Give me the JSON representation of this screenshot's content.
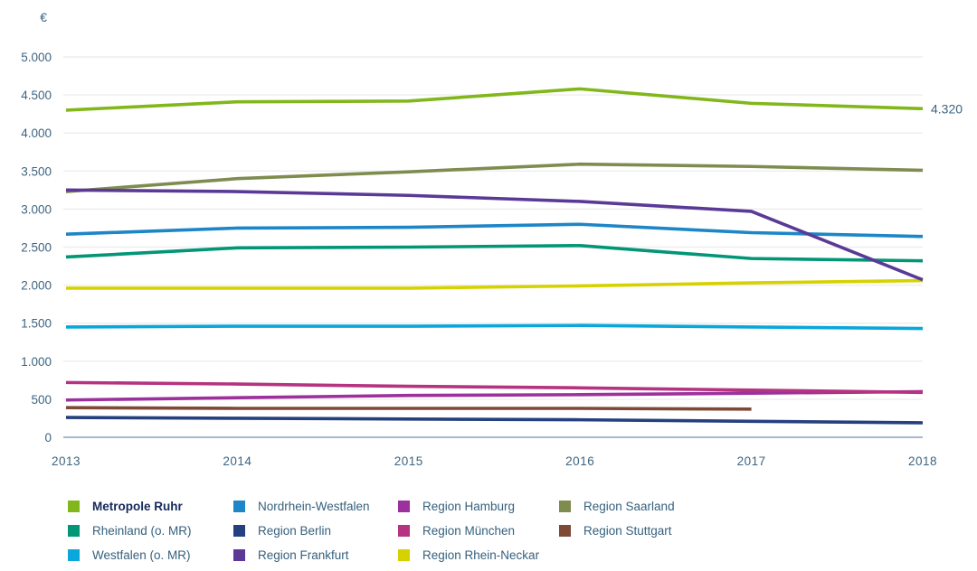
{
  "chart_data": {
    "type": "line",
    "title": "",
    "ylabel": "€",
    "xlabel": "",
    "x": [
      2013,
      2014,
      2015,
      2016,
      2017,
      2018
    ],
    "ylim": [
      0,
      5000
    ],
    "grid": true,
    "legend_position": "bottom",
    "y_ticks": [
      {
        "value": 0,
        "label": "0"
      },
      {
        "value": 500,
        "label": "500"
      },
      {
        "value": 1000,
        "label": "1.000"
      },
      {
        "value": 1500,
        "label": "1.500"
      },
      {
        "value": 2000,
        "label": "2.000"
      },
      {
        "value": 2500,
        "label": "2.500"
      },
      {
        "value": 3000,
        "label": "3.000"
      },
      {
        "value": 3500,
        "label": "3.500"
      },
      {
        "value": 4000,
        "label": "4.000"
      },
      {
        "value": 4500,
        "label": "4.500"
      },
      {
        "value": 5000,
        "label": "5.000"
      }
    ],
    "x_tick_labels": [
      "2013",
      "2014",
      "2015",
      "2016",
      "2017",
      "2018"
    ],
    "series": [
      {
        "name": "Region Saarland",
        "color": "#7e8c4f",
        "values": [
          3230,
          3400,
          3490,
          3590,
          3560,
          3510
        ]
      },
      {
        "name": "Nordrhein-Westfalen",
        "color": "#1d86c7",
        "values": [
          2670,
          2750,
          2760,
          2800,
          2690,
          2640
        ]
      },
      {
        "name": "Rheinland (o. MR)",
        "color": "#029677",
        "values": [
          2370,
          2490,
          2500,
          2520,
          2350,
          2320
        ]
      },
      {
        "name": "Westfalen (o. MR)",
        "color": "#09a7db",
        "values": [
          1450,
          1460,
          1460,
          1470,
          1450,
          1430
        ]
      },
      {
        "name": "Region Rhein-Neckar",
        "color": "#d6d201",
        "values": [
          1960,
          1960,
          1960,
          1990,
          2030,
          2060
        ]
      },
      {
        "name": "Region Berlin",
        "color": "#25407f",
        "values": [
          260,
          250,
          240,
          230,
          210,
          190
        ]
      },
      {
        "name": "Region Stuttgart",
        "color": "#7e4937",
        "values": [
          390,
          380,
          380,
          380,
          370,
          null
        ]
      },
      {
        "name": "Region Hamburg",
        "color": "#9c309c",
        "values": [
          490,
          520,
          550,
          560,
          580,
          600
        ]
      },
      {
        "name": "Region München",
        "color": "#b53380",
        "values": [
          720,
          700,
          670,
          650,
          620,
          590
        ]
      },
      {
        "name": "Region Frankfurt",
        "color": "#5a3a96",
        "values": [
          3250,
          3230,
          3180,
          3100,
          2970,
          2070
        ]
      },
      {
        "name": "Metropole Ruhr",
        "color": "#82b71c",
        "values": [
          4300,
          4410,
          4420,
          4580,
          4390,
          4320
        ]
      }
    ],
    "end_label": {
      "series": "Metropole Ruhr",
      "text": "4.320"
    }
  },
  "legend": {
    "columns": [
      {
        "x": 75,
        "items": [
          {
            "label": "Metropole Ruhr",
            "color": "#82b71c",
            "bold": true
          },
          {
            "label": "Rheinland (o. MR)",
            "color": "#029677",
            "bold": false
          },
          {
            "label": "Westfalen (o. MR)",
            "color": "#09a7db",
            "bold": false
          }
        ]
      },
      {
        "x": 258,
        "items": [
          {
            "label": "Nordrhein-Westfalen",
            "color": "#1d86c7",
            "bold": false
          },
          {
            "label": "Region Berlin",
            "color": "#25407f",
            "bold": false
          },
          {
            "label": "Region Frankfurt",
            "color": "#5a3a96",
            "bold": false
          }
        ]
      },
      {
        "x": 440,
        "items": [
          {
            "label": "Region Hamburg",
            "color": "#9c309c",
            "bold": false
          },
          {
            "label": "Region München",
            "color": "#b53380",
            "bold": false
          },
          {
            "label": "Region Rhein-Neckar",
            "color": "#d6d201",
            "bold": false
          }
        ]
      },
      {
        "x": 618,
        "items": [
          {
            "label": "Region Saarland",
            "color": "#7e8c4f",
            "bold": false
          },
          {
            "label": "Region Stuttgart",
            "color": "#7e4937",
            "bold": false
          }
        ]
      }
    ]
  },
  "style": {
    "axis_text_color": "#3d6480",
    "grid_color": "#ededed",
    "zero_line_color": "#a9bac9",
    "line_width": 3.6
  }
}
